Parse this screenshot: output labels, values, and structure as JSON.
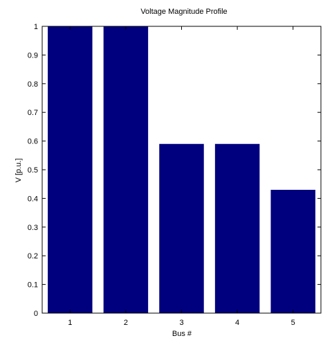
{
  "chart_data": {
    "type": "bar",
    "title": "Voltage Magnitude Profile",
    "xlabel": "Bus #",
    "ylabel": "V [p.u.]",
    "categories": [
      "1",
      "2",
      "3",
      "4",
      "5"
    ],
    "values": [
      1.0,
      1.0,
      0.59,
      0.59,
      0.43
    ],
    "ylim": [
      0,
      1
    ],
    "yticks": [
      "0",
      "0.1",
      "0.2",
      "0.3",
      "0.4",
      "0.5",
      "0.6",
      "0.7",
      "0.8",
      "0.9",
      "1"
    ],
    "bar_color": "#00007f",
    "grid": false,
    "legend": "none"
  }
}
